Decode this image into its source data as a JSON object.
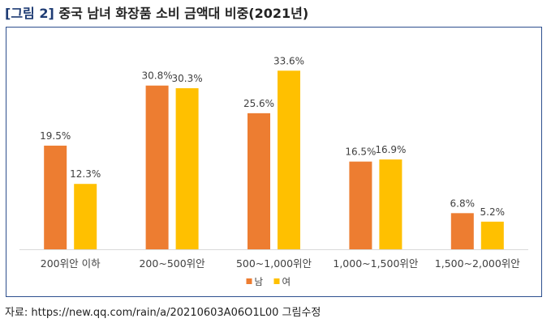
{
  "figure": {
    "label": "[그림 2]",
    "title": "중국 남녀 화장품 소비 금액대 비중(2021년)"
  },
  "chart_data": {
    "type": "bar",
    "categories": [
      "200위안 이하",
      "200~500위안",
      "500~1,000위안",
      "1,000~1,500위안",
      "1,500~2,000위안"
    ],
    "series": [
      {
        "name": "남",
        "color": "#ED7D31",
        "values": [
          19.5,
          30.8,
          25.6,
          16.5,
          6.8
        ],
        "labels": [
          "19.5%",
          "30.8%",
          "25.6%",
          "16.5%",
          "6.8%"
        ]
      },
      {
        "name": "여",
        "color": "#FFC000",
        "values": [
          12.3,
          30.3,
          33.6,
          16.9,
          5.2
        ],
        "labels": [
          "12.3%",
          "30.3%",
          "33.6%",
          "16.9%",
          "5.2%"
        ]
      }
    ],
    "ylim": [
      0,
      37
    ],
    "grid": false,
    "legend_position": "bottom"
  },
  "source": "자료: https://new.qq.com/rain/a/20210603A06O1L00 그림수정"
}
